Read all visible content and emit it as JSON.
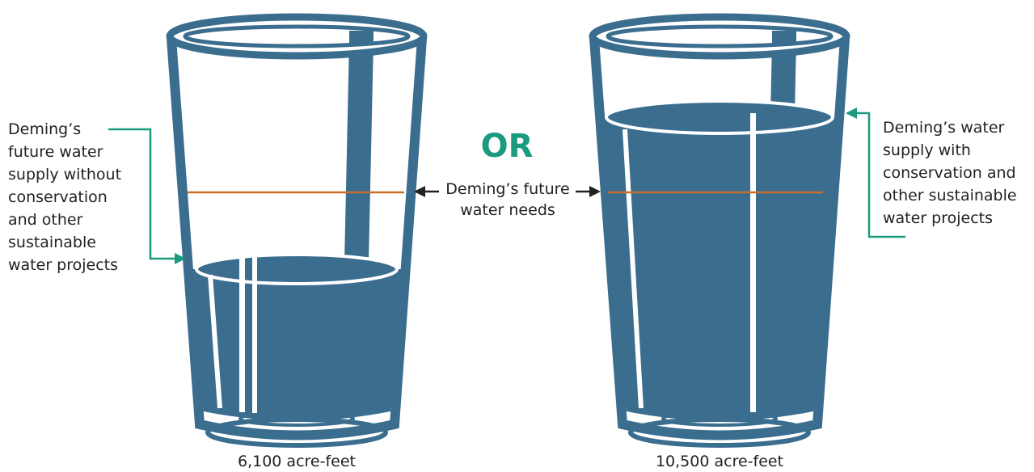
{
  "left_label": [
    "Deming’s",
    "future water",
    "supply without",
    "conservation",
    "and other",
    "sustainable",
    "water projects"
  ],
  "right_label": [
    "Deming’s water",
    "supply with",
    "conservation and",
    "other sustainable",
    "water projects"
  ],
  "separator": "OR",
  "needs_label": [
    "Deming’s future",
    "water needs"
  ],
  "left_glass_label": "6,100 acre-feet",
  "right_glass_label": "10,500 acre-feet"
}
